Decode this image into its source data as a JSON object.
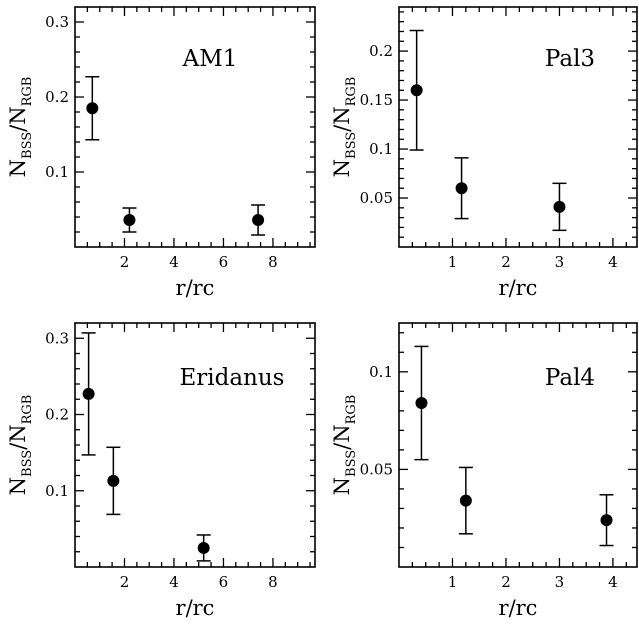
{
  "chart_data": [
    {
      "type": "scatter",
      "panel_label": "AM1",
      "xlabel": "r/rc",
      "ylabel": {
        "main": "N",
        "sub1": "BSS",
        "sep": "/N",
        "sub2": "RGB"
      },
      "xlim": [
        0,
        9.7
      ],
      "ylim": [
        0,
        0.32
      ],
      "xticks": [
        2,
        4,
        6,
        8
      ],
      "yticks": [
        0.1,
        0.2,
        0.3
      ],
      "xtick_labels": [
        "2",
        "4",
        "6",
        "8"
      ],
      "ytick_labels": [
        "0.1",
        "0.2",
        "0.3"
      ],
      "x": [
        0.7,
        2.2,
        7.4
      ],
      "y": [
        0.185,
        0.036,
        0.036
      ],
      "yerr": [
        0.042,
        0.016,
        0.02
      ]
    },
    {
      "type": "scatter",
      "panel_label": "Pal3",
      "xlabel": "r/rc",
      "ylabel": {
        "main": "N",
        "sub1": "BSS",
        "sep": "/N",
        "sub2": "RGB"
      },
      "xlim": [
        0,
        4.45
      ],
      "ylim": [
        0,
        0.245
      ],
      "xticks": [
        1,
        2,
        3,
        4
      ],
      "yticks": [
        0.05,
        0.1,
        0.15,
        0.2
      ],
      "xtick_labels": [
        "1",
        "2",
        "3",
        "4"
      ],
      "ytick_labels": [
        "0.05",
        "0.1",
        "0.15",
        "0.2"
      ],
      "x": [
        0.33,
        1.17,
        3.0
      ],
      "y": [
        0.16,
        0.06,
        0.041
      ],
      "yerr": [
        0.061,
        0.031,
        0.024
      ]
    },
    {
      "type": "scatter",
      "panel_label": "Eridanus",
      "xlabel": "r/rc",
      "ylabel": {
        "main": "N",
        "sub1": "BSS",
        "sep": "/N",
        "sub2": "RGB"
      },
      "xlim": [
        0,
        9.7
      ],
      "ylim": [
        0,
        0.32
      ],
      "xticks": [
        2,
        4,
        6,
        8
      ],
      "yticks": [
        0.1,
        0.2,
        0.3
      ],
      "xtick_labels": [
        "2",
        "4",
        "6",
        "8"
      ],
      "ytick_labels": [
        "0.1",
        "0.2",
        "0.3"
      ],
      "x": [
        0.55,
        1.55,
        5.2
      ],
      "y": [
        0.227,
        0.113,
        0.025
      ],
      "yerr": [
        0.08,
        0.044,
        0.017
      ]
    },
    {
      "type": "scatter",
      "panel_label": "Pal4",
      "xlabel": "r/rc",
      "ylabel": {
        "main": "N",
        "sub1": "BSS",
        "sep": "/N",
        "sub2": "RGB"
      },
      "xlim": [
        0,
        4.45
      ],
      "ylim": [
        0,
        0.125
      ],
      "xticks": [
        1,
        2,
        3,
        4
      ],
      "yticks": [
        0.05,
        0.1
      ],
      "xtick_labels": [
        "1",
        "2",
        "3",
        "4"
      ],
      "ytick_labels": [
        "0.05",
        "0.1"
      ],
      "x": [
        0.42,
        1.25,
        3.88
      ],
      "y": [
        0.084,
        0.034,
        0.024
      ],
      "yerr": [
        0.029,
        0.017,
        0.013
      ]
    }
  ]
}
